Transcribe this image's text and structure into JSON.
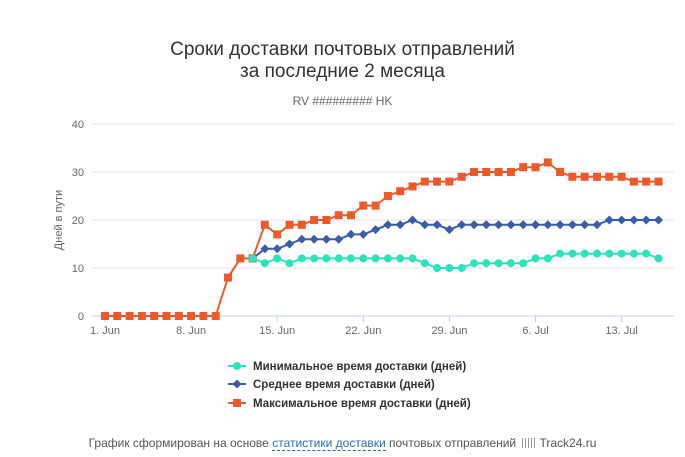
{
  "chart_data": {
    "type": "line",
    "title_line1": "Сроки доставки почтовых отправлений",
    "title_line2": "за последние 2 месяца",
    "subtitle": "RV ######### HK",
    "ylabel": "Дней в пути",
    "ylim": [
      0,
      40
    ],
    "yticks": [
      "0",
      "10",
      "20",
      "30",
      "40"
    ],
    "xlim": [
      0,
      46
    ],
    "xtick_labels": [
      "1. Jun",
      "8. Jun",
      "15. Jun",
      "22. Jun",
      "29. Jun",
      "6. Jul",
      "13. Jul"
    ],
    "xtick_positions": [
      0,
      7,
      14,
      21,
      28,
      35,
      42
    ],
    "grid": true,
    "legend_position": "bottom",
    "series": [
      {
        "name": "Минимальное время доставки (дней)",
        "color": "#2de3be",
        "marker": "circle",
        "x": [
          12,
          13,
          14,
          15,
          16,
          17,
          18,
          19,
          20,
          21,
          22,
          23,
          24,
          25,
          26,
          27,
          28,
          29,
          30,
          31,
          32,
          33,
          34,
          35,
          36,
          37,
          38,
          39,
          40,
          41,
          42,
          43,
          44,
          45
        ],
        "values": [
          12,
          11,
          12,
          11,
          12,
          12,
          12,
          12,
          12,
          12,
          12,
          12,
          12,
          12,
          11,
          10,
          10,
          10,
          11,
          11,
          11,
          11,
          11,
          12,
          12,
          13,
          13,
          13,
          13,
          13,
          13,
          13,
          13,
          12
        ]
      },
      {
        "name": "Среднее время доставки (дней)",
        "color": "#3a5da8",
        "marker": "diamond",
        "x": [
          12,
          13,
          14,
          15,
          16,
          17,
          18,
          19,
          20,
          21,
          22,
          23,
          24,
          25,
          26,
          27,
          28,
          29,
          30,
          31,
          32,
          33,
          34,
          35,
          36,
          37,
          38,
          39,
          40,
          41,
          42,
          43,
          44,
          45
        ],
        "values": [
          12,
          14,
          14,
          15,
          16,
          16,
          16,
          16,
          17,
          17,
          18,
          19,
          19,
          20,
          19,
          19,
          18,
          19,
          19,
          19,
          19,
          19,
          19,
          19,
          19,
          19,
          19,
          19,
          19,
          20,
          20,
          20,
          20,
          20
        ]
      },
      {
        "name": "Максимальное время доставки (дней)",
        "color": "#ec5a2b",
        "marker": "square",
        "x": [
          0,
          1,
          2,
          3,
          4,
          5,
          6,
          7,
          8,
          9,
          10,
          11,
          12,
          13,
          14,
          15,
          16,
          17,
          18,
          19,
          20,
          21,
          22,
          23,
          24,
          25,
          26,
          27,
          28,
          29,
          30,
          31,
          32,
          33,
          34,
          35,
          36,
          37,
          38,
          39,
          40,
          41,
          42,
          43,
          44,
          45
        ],
        "values": [
          0,
          0,
          0,
          0,
          0,
          0,
          0,
          0,
          0,
          0,
          8,
          12,
          12,
          19,
          17,
          19,
          19,
          20,
          20,
          21,
          21,
          23,
          23,
          25,
          26,
          27,
          28,
          28,
          28,
          29,
          30,
          30,
          30,
          30,
          31,
          31,
          32,
          30,
          29,
          29,
          29,
          29,
          29,
          28,
          28,
          28
        ]
      }
    ]
  },
  "footer": {
    "prefix": "График сформирован на основе",
    "link": "статистики доставки",
    "middle": "почтовых отправлений",
    "brand": "Track24.ru"
  }
}
